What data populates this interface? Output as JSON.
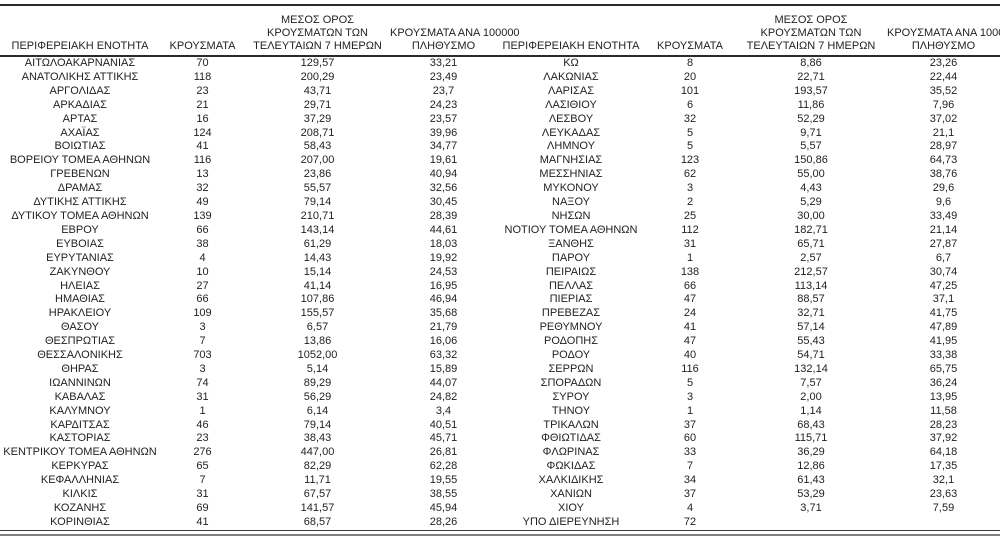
{
  "table": {
    "headers": {
      "region": "ΠΕΡΙΦΕΡΕΙΑΚΗ ΕΝΟΤΗΤΑ",
      "cases": "ΚΡΟΥΣΜΑΤΑ",
      "avg7": "ΜΕΣΟΣ ΟΡΟΣ\nΚΡΟΥΣΜΑΤΩΝ ΤΩΝ\nΤΕΛΕΥΤΑΙΩΝ 7 ΗΜΕΡΩΝ",
      "per100k": "ΚΡΟΥΣΜΑΤΑ ΑΝΑ 100000\nΠΛΗΘΥΣΜΟ"
    },
    "left_rows": [
      [
        "ΑΙΤΩΛΟΑΚΑΡΝΑΝΙΑΣ",
        "70",
        "129,57",
        "33,21"
      ],
      [
        "ΑΝΑΤΟΛΙΚΗΣ ΑΤΤΙΚΗΣ",
        "118",
        "200,29",
        "23,49"
      ],
      [
        "ΑΡΓΟΛΙΔΑΣ",
        "23",
        "43,71",
        "23,7"
      ],
      [
        "ΑΡΚΑΔΙΑΣ",
        "21",
        "29,71",
        "24,23"
      ],
      [
        "ΑΡΤΑΣ",
        "16",
        "37,29",
        "23,57"
      ],
      [
        "ΑΧΑΪΑΣ",
        "124",
        "208,71",
        "39,96"
      ],
      [
        "ΒΟΙΩΤΙΑΣ",
        "41",
        "58,43",
        "34,77"
      ],
      [
        "ΒΟΡΕΙΟΥ ΤΟΜΕΑ ΑΘΗΝΩΝ",
        "116",
        "207,00",
        "19,61"
      ],
      [
        "ΓΡΕΒΕΝΩΝ",
        "13",
        "23,86",
        "40,94"
      ],
      [
        "ΔΡΑΜΑΣ",
        "32",
        "55,57",
        "32,56"
      ],
      [
        "ΔΥΤΙΚΗΣ ΑΤΤΙΚΗΣ",
        "49",
        "79,14",
        "30,45"
      ],
      [
        "ΔΥΤΙΚΟΥ ΤΟΜΕΑ ΑΘΗΝΩΝ",
        "139",
        "210,71",
        "28,39"
      ],
      [
        "ΕΒΡΟΥ",
        "66",
        "143,14",
        "44,61"
      ],
      [
        "ΕΥΒΟΙΑΣ",
        "38",
        "61,29",
        "18,03"
      ],
      [
        "ΕΥΡΥΤΑΝΙΑΣ",
        "4",
        "14,43",
        "19,92"
      ],
      [
        "ΖΑΚΥΝΘΟΥ",
        "10",
        "15,14",
        "24,53"
      ],
      [
        "ΗΛΕΙΑΣ",
        "27",
        "41,14",
        "16,95"
      ],
      [
        "ΗΜΑΘΙΑΣ",
        "66",
        "107,86",
        "46,94"
      ],
      [
        "ΗΡΑΚΛΕΙΟΥ",
        "109",
        "155,57",
        "35,68"
      ],
      [
        "ΘΑΣΟΥ",
        "3",
        "6,57",
        "21,79"
      ],
      [
        "ΘΕΣΠΡΩΤΙΑΣ",
        "7",
        "13,86",
        "16,06"
      ],
      [
        "ΘΕΣΣΑΛΟΝΙΚΗΣ",
        "703",
        "1052,00",
        "63,32"
      ],
      [
        "ΘΗΡΑΣ",
        "3",
        "5,14",
        "15,89"
      ],
      [
        "ΙΩΑΝΝΙΝΩΝ",
        "74",
        "89,29",
        "44,07"
      ],
      [
        "ΚΑΒΑΛΑΣ",
        "31",
        "56,29",
        "24,82"
      ],
      [
        "ΚΑΛΥΜΝΟΥ",
        "1",
        "6,14",
        "3,4"
      ],
      [
        "ΚΑΡΔΙΤΣΑΣ",
        "46",
        "79,14",
        "40,51"
      ],
      [
        "ΚΑΣΤΟΡΙΑΣ",
        "23",
        "38,43",
        "45,71"
      ],
      [
        "ΚΕΝΤΡΙΚΟΥ ΤΟΜΕΑ ΑΘΗΝΩΝ",
        "276",
        "447,00",
        "26,81"
      ],
      [
        "ΚΕΡΚΥΡΑΣ",
        "65",
        "82,29",
        "62,28"
      ],
      [
        "ΚΕΦΑΛΛΗΝΙΑΣ",
        "7",
        "11,71",
        "19,55"
      ],
      [
        "ΚΙΛΚΙΣ",
        "31",
        "67,57",
        "38,55"
      ],
      [
        "ΚΟΖΑΝΗΣ",
        "69",
        "141,57",
        "45,94"
      ],
      [
        "ΚΟΡΙΝΘΙΑΣ",
        "41",
        "68,57",
        "28,26"
      ]
    ],
    "right_rows": [
      [
        "ΚΩ",
        "8",
        "8,86",
        "23,26"
      ],
      [
        "ΛΑΚΩΝΙΑΣ",
        "20",
        "22,71",
        "22,44"
      ],
      [
        "ΛΑΡΙΣΑΣ",
        "101",
        "193,57",
        "35,52"
      ],
      [
        "ΛΑΣΙΘΙΟΥ",
        "6",
        "11,86",
        "7,96"
      ],
      [
        "ΛΕΣΒΟΥ",
        "32",
        "52,29",
        "37,02"
      ],
      [
        "ΛΕΥΚΑΔΑΣ",
        "5",
        "9,71",
        "21,1"
      ],
      [
        "ΛΗΜΝΟΥ",
        "5",
        "5,57",
        "28,97"
      ],
      [
        "ΜΑΓΝΗΣΙΑΣ",
        "123",
        "150,86",
        "64,73"
      ],
      [
        "ΜΕΣΣΗΝΙΑΣ",
        "62",
        "55,00",
        "38,76"
      ],
      [
        "ΜΥΚΟΝΟΥ",
        "3",
        "4,43",
        "29,6"
      ],
      [
        "ΝΑΞΟΥ",
        "2",
        "5,29",
        "9,6"
      ],
      [
        "ΝΗΣΩΝ",
        "25",
        "30,00",
        "33,49"
      ],
      [
        "ΝΟΤΙΟΥ ΤΟΜΕΑ ΑΘΗΝΩΝ",
        "112",
        "182,71",
        "21,14"
      ],
      [
        "ΞΑΝΘΗΣ",
        "31",
        "65,71",
        "27,87"
      ],
      [
        "ΠΑΡΟΥ",
        "1",
        "2,57",
        "6,7"
      ],
      [
        "ΠΕΙΡΑΙΩΣ",
        "138",
        "212,57",
        "30,74"
      ],
      [
        "ΠΕΛΛΑΣ",
        "66",
        "113,14",
        "47,25"
      ],
      [
        "ΠΙΕΡΙΑΣ",
        "47",
        "88,57",
        "37,1"
      ],
      [
        "ΠΡΕΒΕΖΑΣ",
        "24",
        "32,71",
        "41,75"
      ],
      [
        "ΡΕΘΥΜΝΟΥ",
        "41",
        "57,14",
        "47,89"
      ],
      [
        "ΡΟΔΟΠΗΣ",
        "47",
        "55,43",
        "41,95"
      ],
      [
        "ΡΟΔΟΥ",
        "40",
        "54,71",
        "33,38"
      ],
      [
        "ΣΕΡΡΩΝ",
        "116",
        "132,14",
        "65,75"
      ],
      [
        "ΣΠΟΡΑΔΩΝ",
        "5",
        "7,57",
        "36,24"
      ],
      [
        "ΣΥΡΟΥ",
        "3",
        "2,00",
        "13,95"
      ],
      [
        "ΤΗΝΟΥ",
        "1",
        "1,14",
        "11,58"
      ],
      [
        "ΤΡΙΚΑΛΩΝ",
        "37",
        "68,43",
        "28,23"
      ],
      [
        "ΦΘΙΩΤΙΔΑΣ",
        "60",
        "115,71",
        "37,92"
      ],
      [
        "ΦΛΩΡΙΝΑΣ",
        "33",
        "36,29",
        "64,18"
      ],
      [
        "ΦΩΚΙΔΑΣ",
        "7",
        "12,86",
        "17,35"
      ],
      [
        "ΧΑΛΚΙΔΙΚΗΣ",
        "34",
        "61,43",
        "32,1"
      ],
      [
        "ΧΑΝΙΩΝ",
        "37",
        "53,29",
        "23,63"
      ],
      [
        "ΧΙΟΥ",
        "4",
        "3,71",
        "7,59"
      ],
      [
        "ΥΠΟ ΔΙΕΡΕΥΝΗΣΗ",
        "72",
        "",
        ""
      ]
    ],
    "colors": {
      "rule_dark": "#2b2b2b",
      "rule_gray": "#808080",
      "text": "#1f1f1f"
    }
  }
}
